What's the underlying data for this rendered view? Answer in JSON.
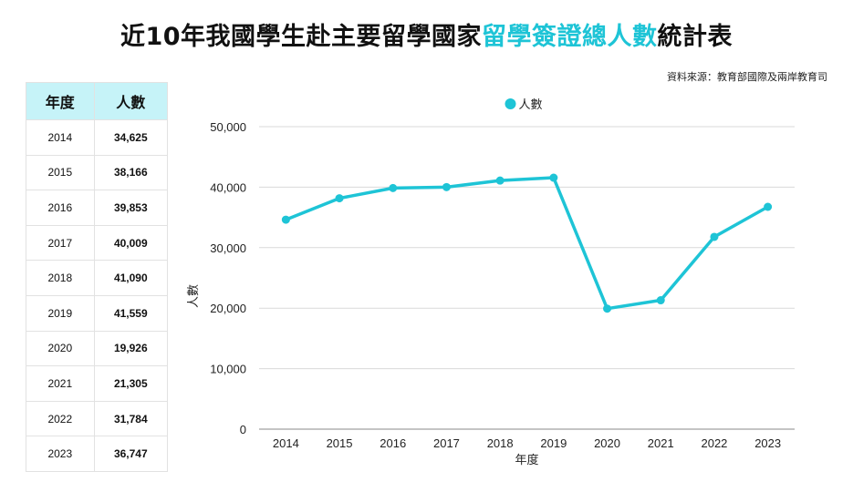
{
  "title": {
    "part1": "近10年我國學生赴主要留學國家",
    "highlight": "留學簽證總人數",
    "part2": "統計表",
    "highlight_color": "#1ec4d6"
  },
  "source": "資料來源：教育部國際及兩岸教育司",
  "table": {
    "headers": [
      "年度",
      "人數"
    ],
    "header_bg": "#c6f3f8",
    "rows": [
      [
        "2014",
        "34,625"
      ],
      [
        "2015",
        "38,166"
      ],
      [
        "2016",
        "39,853"
      ],
      [
        "2017",
        "40,009"
      ],
      [
        "2018",
        "41,090"
      ],
      [
        "2019",
        "41,559"
      ],
      [
        "2020",
        "19,926"
      ],
      [
        "2021",
        "21,305"
      ],
      [
        "2022",
        "31,784"
      ],
      [
        "2023",
        "36,747"
      ]
    ]
  },
  "chart_data": {
    "type": "line",
    "x": [
      "2014",
      "2015",
      "2016",
      "2017",
      "2018",
      "2019",
      "2020",
      "2021",
      "2022",
      "2023"
    ],
    "series": [
      {
        "name": "人數",
        "color": "#1ec4d6",
        "values": [
          34625,
          38166,
          39853,
          40009,
          41090,
          41559,
          19926,
          21305,
          31784,
          36747
        ]
      }
    ],
    "xlabel": "年度",
    "ylabel": "人數",
    "ylim": [
      0,
      50000
    ],
    "yticks": [
      "0",
      "10,000",
      "20,000",
      "30,000",
      "40,000",
      "50,000"
    ],
    "ytick_values": [
      0,
      10000,
      20000,
      30000,
      40000,
      50000
    ],
    "grid": true,
    "legend_position": "top-center"
  }
}
